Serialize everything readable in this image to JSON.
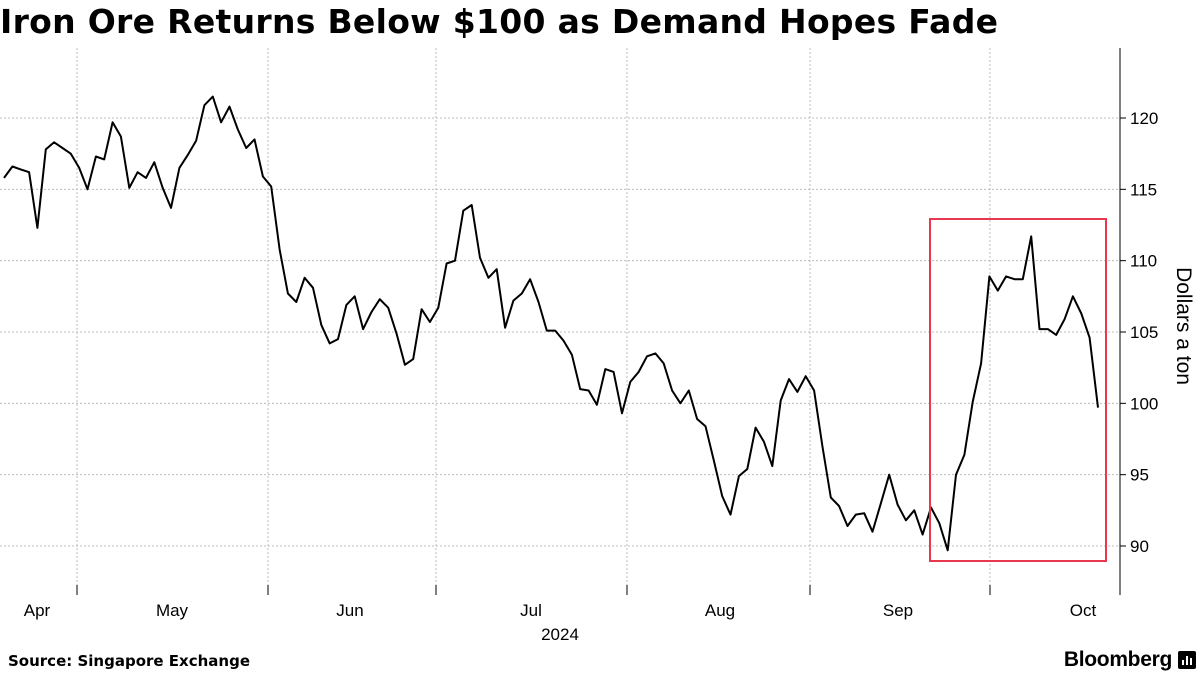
{
  "title": "Iron Ore Returns Below $100 as Demand Hopes Fade",
  "source": "Source: Singapore Exchange",
  "brand": "Bloomberg",
  "brand_icon": "bloomberg-terminal-icon",
  "colors": {
    "line": "#000000",
    "highlight": "#e8384f",
    "grid": "#bdbdbd",
    "axis": "#000000"
  },
  "chart_data": {
    "type": "line",
    "title": "Iron Ore Returns Below $100 as Demand Hopes Fade",
    "ylabel": "Dollars a ton",
    "xlabel": "2024",
    "ylim": [
      87,
      124
    ],
    "xlim": [
      0,
      130
    ],
    "y_ticks": [
      90,
      95,
      100,
      105,
      110,
      115,
      120
    ],
    "x_ticks": [
      {
        "label": "Apr",
        "pos": 0
      },
      {
        "label": "May",
        "pos": 21
      },
      {
        "label": "Jun",
        "pos": 42
      },
      {
        "label": "Jul",
        "pos": 63
      },
      {
        "label": "Aug",
        "pos": 84
      },
      {
        "label": "Sep",
        "pos": 106
      },
      {
        "label": "Oct",
        "pos": 127
      }
    ],
    "year_label": "2024",
    "x_grid_lines": [
      9,
      31,
      51,
      72,
      95,
      116
    ],
    "grid": true,
    "highlight_box": {
      "x_range": [
        108,
        129
      ],
      "y_range": [
        89,
        113
      ]
    },
    "series": [
      {
        "name": "Iron ore",
        "values": [
          {
            "x": 0,
            "y": 115.8
          },
          {
            "x": 1,
            "y": 116.6
          },
          {
            "x": 2,
            "y": 116.4
          },
          {
            "x": 3,
            "y": 116.2
          },
          {
            "x": 4,
            "y": 112.3
          },
          {
            "x": 5,
            "y": 117.8
          },
          {
            "x": 6,
            "y": 118.3
          },
          {
            "x": 7,
            "y": 117.9
          },
          {
            "x": 8,
            "y": 117.5
          },
          {
            "x": 9,
            "y": 116.5
          },
          {
            "x": 10,
            "y": 115.0
          },
          {
            "x": 11,
            "y": 117.3
          },
          {
            "x": 12,
            "y": 117.1
          },
          {
            "x": 13,
            "y": 119.7
          },
          {
            "x": 14,
            "y": 118.7
          },
          {
            "x": 15,
            "y": 115.1
          },
          {
            "x": 16,
            "y": 116.2
          },
          {
            "x": 17,
            "y": 115.8
          },
          {
            "x": 18,
            "y": 116.9
          },
          {
            "x": 19,
            "y": 115.1
          },
          {
            "x": 20,
            "y": 113.7
          },
          {
            "x": 21,
            "y": 116.5
          },
          {
            "x": 22,
            "y": 117.4
          },
          {
            "x": 23,
            "y": 118.4
          },
          {
            "x": 24,
            "y": 120.9
          },
          {
            "x": 25,
            "y": 121.5
          },
          {
            "x": 26,
            "y": 119.7
          },
          {
            "x": 27,
            "y": 120.8
          },
          {
            "x": 28,
            "y": 119.2
          },
          {
            "x": 29,
            "y": 117.9
          },
          {
            "x": 30,
            "y": 118.5
          },
          {
            "x": 31,
            "y": 115.9
          },
          {
            "x": 32,
            "y": 115.2
          },
          {
            "x": 33,
            "y": 110.8
          },
          {
            "x": 34,
            "y": 107.7
          },
          {
            "x": 35,
            "y": 107.1
          },
          {
            "x": 36,
            "y": 108.8
          },
          {
            "x": 37,
            "y": 108.1
          },
          {
            "x": 38,
            "y": 105.5
          },
          {
            "x": 39,
            "y": 104.2
          },
          {
            "x": 40,
            "y": 104.5
          },
          {
            "x": 41,
            "y": 106.9
          },
          {
            "x": 42,
            "y": 107.5
          },
          {
            "x": 43,
            "y": 105.2
          },
          {
            "x": 44,
            "y": 106.4
          },
          {
            "x": 45,
            "y": 107.3
          },
          {
            "x": 46,
            "y": 106.7
          },
          {
            "x": 47,
            "y": 104.9
          },
          {
            "x": 48,
            "y": 102.7
          },
          {
            "x": 49,
            "y": 103.1
          },
          {
            "x": 50,
            "y": 106.6
          },
          {
            "x": 51,
            "y": 105.7
          },
          {
            "x": 52,
            "y": 106.7
          },
          {
            "x": 53,
            "y": 109.8
          },
          {
            "x": 54,
            "y": 110.0
          },
          {
            "x": 55,
            "y": 113.5
          },
          {
            "x": 56,
            "y": 113.9
          },
          {
            "x": 57,
            "y": 110.2
          },
          {
            "x": 58,
            "y": 108.8
          },
          {
            "x": 59,
            "y": 109.4
          },
          {
            "x": 60,
            "y": 105.3
          },
          {
            "x": 61,
            "y": 107.2
          },
          {
            "x": 62,
            "y": 107.7
          },
          {
            "x": 63,
            "y": 108.7
          },
          {
            "x": 64,
            "y": 107.1
          },
          {
            "x": 65,
            "y": 105.1
          },
          {
            "x": 66,
            "y": 105.1
          },
          {
            "x": 67,
            "y": 104.4
          },
          {
            "x": 68,
            "y": 103.4
          },
          {
            "x": 69,
            "y": 101.0
          },
          {
            "x": 70,
            "y": 100.9
          },
          {
            "x": 71,
            "y": 99.9
          },
          {
            "x": 72,
            "y": 102.4
          },
          {
            "x": 73,
            "y": 102.2
          },
          {
            "x": 74,
            "y": 99.3
          },
          {
            "x": 75,
            "y": 101.5
          },
          {
            "x": 76,
            "y": 102.2
          },
          {
            "x": 77,
            "y": 103.3
          },
          {
            "x": 78,
            "y": 103.5
          },
          {
            "x": 79,
            "y": 102.8
          },
          {
            "x": 80,
            "y": 100.9
          },
          {
            "x": 81,
            "y": 100.0
          },
          {
            "x": 82,
            "y": 100.9
          },
          {
            "x": 83,
            "y": 98.9
          },
          {
            "x": 84,
            "y": 98.4
          },
          {
            "x": 85,
            "y": 96.0
          },
          {
            "x": 86,
            "y": 93.5
          },
          {
            "x": 87,
            "y": 92.2
          },
          {
            "x": 88,
            "y": 94.9
          },
          {
            "x": 89,
            "y": 95.4
          },
          {
            "x": 90,
            "y": 98.3
          },
          {
            "x": 91,
            "y": 97.3
          },
          {
            "x": 92,
            "y": 95.6
          },
          {
            "x": 93,
            "y": 100.2
          },
          {
            "x": 94,
            "y": 101.7
          },
          {
            "x": 95,
            "y": 100.8
          },
          {
            "x": 96,
            "y": 101.9
          },
          {
            "x": 97,
            "y": 100.9
          },
          {
            "x": 98,
            "y": 97.0
          },
          {
            "x": 99,
            "y": 93.4
          },
          {
            "x": 100,
            "y": 92.8
          },
          {
            "x": 101,
            "y": 91.4
          },
          {
            "x": 102,
            "y": 92.2
          },
          {
            "x": 103,
            "y": 92.3
          },
          {
            "x": 104,
            "y": 91.0
          },
          {
            "x": 105,
            "y": 93.0
          },
          {
            "x": 106,
            "y": 95.0
          },
          {
            "x": 107,
            "y": 92.9
          },
          {
            "x": 108,
            "y": 91.8
          },
          {
            "x": 109,
            "y": 92.5
          },
          {
            "x": 110,
            "y": 90.8
          },
          {
            "x": 111,
            "y": 92.7
          },
          {
            "x": 112,
            "y": 91.6
          },
          {
            "x": 113,
            "y": 89.7
          },
          {
            "x": 114,
            "y": 95.0
          },
          {
            "x": 115,
            "y": 96.4
          },
          {
            "x": 116,
            "y": 100.1
          },
          {
            "x": 117,
            "y": 102.8
          },
          {
            "x": 118,
            "y": 108.9
          },
          {
            "x": 119,
            "y": 107.9
          },
          {
            "x": 120,
            "y": 108.9
          },
          {
            "x": 121,
            "y": 108.7
          },
          {
            "x": 122,
            "y": 108.7
          },
          {
            "x": 123,
            "y": 111.7
          },
          {
            "x": 124,
            "y": 105.2
          },
          {
            "x": 125,
            "y": 105.2
          },
          {
            "x": 126,
            "y": 104.8
          },
          {
            "x": 127,
            "y": 105.9
          },
          {
            "x": 128,
            "y": 107.5
          },
          {
            "x": 129,
            "y": 106.3
          },
          {
            "x": 130,
            "y": 104.6
          },
          {
            "x": 131,
            "y": 99.7
          }
        ]
      }
    ]
  }
}
